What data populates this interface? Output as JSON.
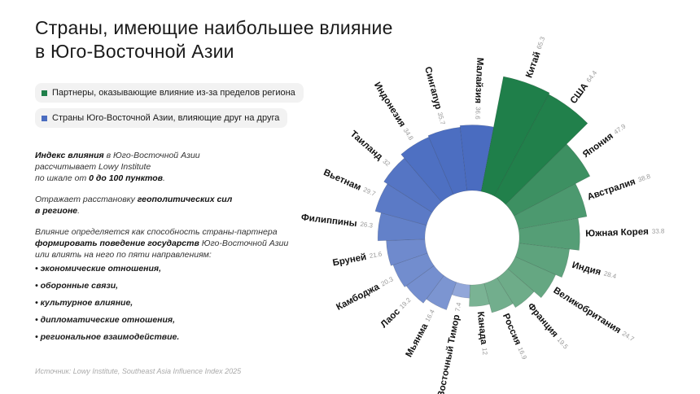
{
  "chart_data": {
    "type": "radial-bar",
    "title": [
      "Страны, имеющие наибольшее влияние",
      "в Юго-Восточной Азии"
    ],
    "categories": [
      "Китай",
      "США",
      "Япония",
      "Австралия",
      "Южная Корея",
      "Индия",
      "Великобритания",
      "Франция",
      "Россия",
      "Канада",
      "Восточный Тимор",
      "Мьянма",
      "Лаос",
      "Камбоджа",
      "Бруней",
      "Филиппины",
      "Вьетнам",
      "Таиланд",
      "Индонезия",
      "Сингапур",
      "Малайзия"
    ],
    "series": [
      {
        "name": "Партнеры, оказывающие влияние из-за пределов региона",
        "color": "#1f7f4a",
        "values": [
          65.3,
          64.4,
          47.9,
          38.8,
          33.8,
          28.4,
          24.7,
          19.5,
          16.9,
          12.0,
          null,
          null,
          null,
          null,
          null,
          null,
          null,
          null,
          null,
          null,
          null
        ]
      },
      {
        "name": "Страны Юго-Восточной Азии, влияющие друг на друга",
        "color": "#4a6cc0",
        "values": [
          null,
          null,
          null,
          null,
          null,
          null,
          null,
          null,
          null,
          null,
          7.4,
          16.4,
          19.2,
          20.3,
          21.6,
          26.3,
          29.7,
          32.0,
          34.8,
          35.7,
          36.6
        ]
      }
    ],
    "notes": [
      [
        [
          {
            "text": "Индекс влияния",
            "bold": true
          },
          {
            "text": " в Юго-Восточной Азии"
          }
        ],
        [
          {
            "text": "рассчитывает Lowy Institute"
          }
        ],
        [
          {
            "text": "по шкале от "
          },
          {
            "text": "0 до 100 пунктов",
            "bold": true
          },
          {
            "text": "."
          }
        ]
      ],
      [
        [
          {
            "text": "Отражает расстановку "
          },
          {
            "text": "геополитических сил",
            "bold": true
          }
        ],
        [
          {
            "text": "в регионе",
            "bold": true
          },
          {
            "text": "."
          }
        ]
      ],
      [
        [
          {
            "text": "Влияние определяется как способность страны-партнера"
          }
        ],
        [
          {
            "text": "формировать поведение государств",
            "bold": true
          },
          {
            "text": " Юго-Восточной Азии"
          }
        ],
        [
          {
            "text": "или влиять на него по пяти направлениям:"
          }
        ]
      ]
    ],
    "bullets": [
      "экономические отношения,",
      "оборонные связи,",
      "культурное влияние,",
      "дипломатические отношения,",
      "региональное взаимодействие."
    ],
    "source": "Источник: Lowy Institute, Southeast Asia Influence Index 2025"
  }
}
